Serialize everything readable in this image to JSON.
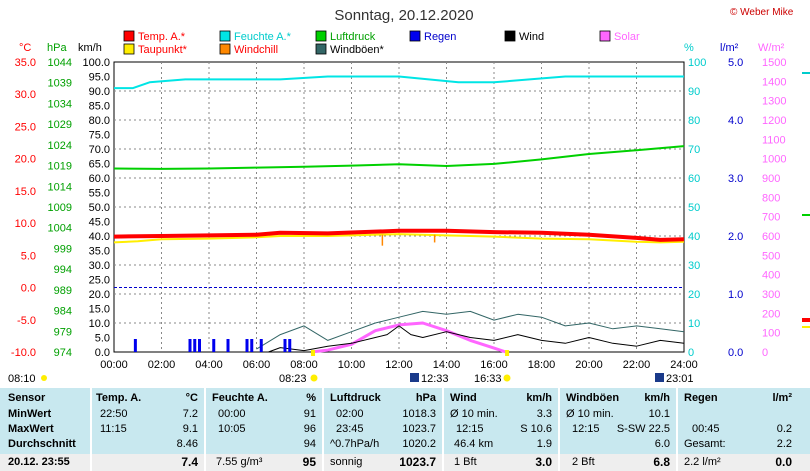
{
  "chart_data": {
    "type": "line",
    "title": "Sonntag, 20.12.2020",
    "credit": "© Weber Mike",
    "axis_units": {
      "temp": "°C",
      "pressure": "hPa",
      "wind": "km/h",
      "humidity": "%",
      "rain": "l/m²",
      "solar": "W/m²"
    },
    "axes": {
      "temp": {
        "min": -10.0,
        "max": 35.0,
        "ticks": [
          "35.0",
          "30.0",
          "25.0",
          "20.0",
          "15.0",
          "10.0",
          "5.0",
          "0.0",
          "-5.0",
          "-10.0"
        ]
      },
      "pressure": {
        "min": 974,
        "max": 1044,
        "ticks": [
          "1044",
          "1039",
          "1034",
          "1029",
          "1024",
          "1019",
          "1014",
          "1009",
          "1004",
          "999",
          "994",
          "989",
          "984",
          "979",
          "974"
        ]
      },
      "wind": {
        "min": 0,
        "max": 100,
        "ticks": [
          "100.0",
          "95.0",
          "90.0",
          "85.0",
          "80.0",
          "75.0",
          "70.0",
          "65.0",
          "60.0",
          "55.0",
          "50.0",
          "45.0",
          "40.0",
          "35.0",
          "30.0",
          "25.0",
          "20.0",
          "15.0",
          "10.0",
          "5.0",
          "0.0"
        ]
      },
      "humidity": {
        "min": 0,
        "max": 100,
        "ticks": [
          "100",
          "90",
          "80",
          "70",
          "60",
          "50",
          "40",
          "30",
          "20",
          "10",
          "0"
        ]
      },
      "rain": {
        "min": 0,
        "max": 5.0,
        "ticks": [
          "5.0",
          "4.0",
          "3.0",
          "2.0",
          "1.0",
          "0.0"
        ]
      },
      "solar": {
        "min": 0,
        "max": 1500,
        "ticks": [
          "1500",
          "1400",
          "1300",
          "1200",
          "1100",
          "1000",
          "900",
          "800",
          "700",
          "600",
          "500",
          "400",
          "300",
          "200",
          "100",
          "0"
        ]
      }
    },
    "x_ticks": [
      "00:00",
      "02:00",
      "04:00",
      "06:00",
      "08:00",
      "10:00",
      "12:00",
      "14:00",
      "16:00",
      "18:00",
      "20:00",
      "22:00",
      "24:00"
    ],
    "legend": [
      {
        "label": "Temp. A.*",
        "color": "#ff0000"
      },
      {
        "label": "Feuchte A.*",
        "color": "#00e5e5"
      },
      {
        "label": "Luftdruck",
        "color": "#00d000"
      },
      {
        "label": "Regen",
        "color": "#0000ee"
      },
      {
        "label": "Wind",
        "color": "#000000"
      },
      {
        "label": "Solar",
        "color": "#ff66ff"
      },
      {
        "label": "Taupunkt*",
        "color": "#ffee00"
      },
      {
        "label": "Windchill",
        "color": "#ff8800"
      },
      {
        "label": "Windböen*",
        "color": "#336666"
      }
    ],
    "series": {
      "temp": {
        "color": "#ff0000",
        "x": [
          0,
          2,
          4,
          6,
          7,
          9,
          12,
          14,
          16,
          18,
          20,
          22,
          23,
          24
        ],
        "y": [
          7.9,
          8.0,
          8.1,
          8.2,
          8.5,
          8.4,
          8.8,
          8.8,
          8.6,
          8.5,
          8.2,
          7.7,
          7.4,
          7.5
        ]
      },
      "dewpoint": {
        "color": "#ffee00",
        "x": [
          0,
          1,
          2,
          4,
          6,
          7,
          9,
          12,
          14,
          16,
          18,
          20,
          22,
          23,
          24
        ],
        "y": [
          7.0,
          7.2,
          7.5,
          7.6,
          7.8,
          8.0,
          8.0,
          8.3,
          8.1,
          7.9,
          7.6,
          7.5,
          7.1,
          7.0,
          7.1
        ]
      },
      "windchill_dips": {
        "color": "#ff8800",
        "x": [
          11.3,
          13.5
        ],
        "y": [
          6.5,
          7.0
        ]
      },
      "humidity": {
        "color": "#00e5e5",
        "x": [
          0,
          0.8,
          1.5,
          3,
          5,
          7,
          9,
          12,
          14.5,
          16,
          17.5,
          19,
          22,
          24
        ],
        "y": [
          91,
          91,
          93,
          94,
          94,
          94,
          95,
          95,
          93,
          93,
          94,
          95,
          95,
          95
        ]
      },
      "pressure": {
        "color": "#00d000",
        "x": [
          0,
          2,
          4,
          6,
          8,
          10,
          12,
          14,
          16,
          18,
          20,
          22,
          24
        ],
        "y": [
          1018.3,
          1018.2,
          1018.3,
          1018.5,
          1018.7,
          1019.0,
          1019.3,
          1018.9,
          1019.4,
          1020.5,
          1021.8,
          1022.7,
          1023.7
        ]
      },
      "solar": {
        "color": "#ff66ff",
        "x": [
          8.3,
          9,
          10,
          11,
          12,
          13,
          14,
          15,
          16,
          16.5
        ],
        "y": [
          0,
          10,
          40,
          110,
          140,
          150,
          110,
          60,
          20,
          0
        ]
      },
      "wind": {
        "color": "#000000",
        "x": [
          0,
          6.5,
          7,
          8,
          9,
          10,
          11,
          11.5,
          12,
          12.5,
          13,
          14,
          15,
          16,
          17,
          18,
          19,
          20,
          21,
          22,
          23,
          24
        ],
        "y": [
          0,
          0,
          1.5,
          0.5,
          2,
          3,
          5,
          6,
          9,
          6,
          5,
          7,
          5,
          4,
          6,
          4,
          3,
          5,
          3,
          2,
          4,
          3
        ]
      },
      "gust": {
        "color": "#336666",
        "x": [
          6,
          7,
          8,
          9,
          10,
          11,
          12,
          13,
          14,
          15,
          16,
          17,
          18,
          19,
          20,
          21,
          22,
          23,
          24
        ],
        "y": [
          1,
          6,
          9,
          4,
          7,
          10,
          12,
          14,
          13,
          14,
          11,
          13,
          12,
          9,
          10,
          8,
          9,
          8,
          7
        ]
      },
      "rain_marks": {
        "color": "#0000ee",
        "x": [
          0.9,
          3.2,
          3.4,
          3.6,
          4.2,
          4.8,
          5.6,
          5.8,
          6.2,
          7.2,
          7.4
        ]
      }
    },
    "min_temp_line_value": 0.0,
    "markers": {
      "sunrise": "08:23",
      "sunset": "16:33",
      "moon_a": "12:33",
      "moon_b": "23:01",
      "left_note": "08:10"
    }
  },
  "table": {
    "sensor": {
      "header": "Sensor",
      "rows": [
        "MinWert",
        "MaxWert",
        "Durchschnitt"
      ],
      "foot": "20.12. 23:55"
    },
    "temp": {
      "header": "Temp. A.",
      "unit": "°C",
      "rows": [
        [
          "22:50",
          "7.2"
        ],
        [
          "11:15",
          "9.1"
        ],
        [
          "",
          "8.46"
        ]
      ],
      "foot": "7.4"
    },
    "humid": {
      "header": "Feuchte A.",
      "unit": "%",
      "rows": [
        [
          "00:00",
          "91"
        ],
        [
          "10:05",
          "96"
        ],
        [
          "",
          "94"
        ]
      ],
      "foot_left": "7.55 g/m³",
      "foot": "95"
    },
    "press": {
      "header": "Luftdruck",
      "unit": "hPa",
      "rows": [
        [
          "02:00",
          "1018.3"
        ],
        [
          "23:45",
          "1023.7"
        ],
        [
          "^0.7hPa/h",
          "1020.2"
        ]
      ],
      "foot_left": "sonnig",
      "foot": "1023.7"
    },
    "wind": {
      "header": "Wind",
      "unit": "km/h",
      "rows": [
        [
          "Ø 10 min.",
          "3.3"
        ],
        [
          "12:15",
          "S 10.6"
        ],
        [
          "46.4 km",
          "1.9"
        ]
      ],
      "foot_left": "1 Bft",
      "foot": "3.0"
    },
    "gust": {
      "header": "Windböen",
      "unit": "km/h",
      "rows": [
        [
          "Ø 10 min.",
          "10.1"
        ],
        [
          "12:15",
          "S-SW 22.5"
        ],
        [
          "",
          "6.0"
        ]
      ],
      "foot_left": "2 Bft",
      "foot": "6.8"
    },
    "rain": {
      "header": "Regen",
      "unit": "l/m²",
      "rows": [
        [
          "",
          ""
        ],
        [
          "00:45",
          "0.2"
        ],
        [
          "Gesamt:",
          "2.2"
        ]
      ],
      "foot_left": "2.2 l/m²",
      "foot": "0.0"
    }
  }
}
